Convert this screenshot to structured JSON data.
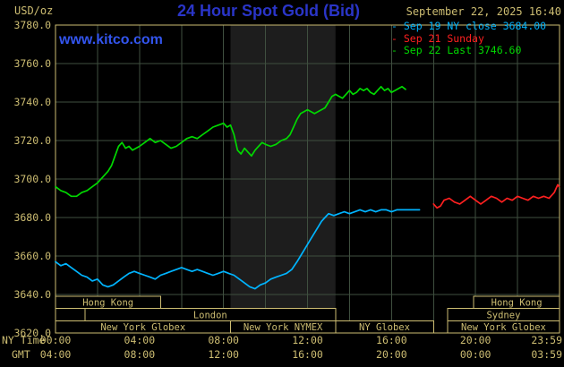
{
  "header": {
    "units_label": "USD/oz",
    "title": "24 Hour Spot Gold (Bid)",
    "datetime": "September 22, 2025 16:40",
    "watermark": "www.kitco.com"
  },
  "legend": {
    "items": [
      {
        "label": "Sep 19 NY close 3684.00",
        "color": "#00b4ff"
      },
      {
        "label": "Sep 21 Sunday",
        "color": "#ff2020"
      },
      {
        "label": "Sep 22 Last 3746.60",
        "color": "#00d800"
      }
    ]
  },
  "axes": {
    "x_primary_label": "NY Time",
    "x_secondary_label": "GMT",
    "x_primary_ticks": [
      "00:00",
      "04:00",
      "08:00",
      "12:00",
      "16:00",
      "20:00",
      "23:59"
    ],
    "x_secondary_ticks": [
      "04:00",
      "08:00",
      "12:00",
      "16:00",
      "20:00",
      "00:00",
      "03:59"
    ],
    "y_ticks": [
      "3780.0",
      "3760.0",
      "3740.0",
      "3720.0",
      "3700.0",
      "3680.0",
      "3660.0",
      "3640.0",
      "3620.0"
    ]
  },
  "colors": {
    "background": "#000000",
    "frame_tan": "#cdbd72",
    "title_blue": "#2a35c8",
    "kitco_blue": "#3355ee",
    "grid": "#3f4f3f",
    "session_band": "#1d1d1d",
    "session_box_fill": "#000000"
  },
  "chart_data": {
    "type": "line",
    "title": "24 Hour Spot Gold (Bid)",
    "ylabel": "USD/oz",
    "ylim": [
      3620,
      3780
    ],
    "y_tick_step": 20,
    "xlim": [
      0,
      1440
    ],
    "x_unit": "minutes since 00:00 NY time",
    "x_ticks_minutes": [
      0,
      240,
      480,
      720,
      960,
      1200,
      1439
    ],
    "grid": true,
    "legend_position": "top-right",
    "session_band": {
      "label": "New York NYMEX",
      "start_min": 500,
      "end_min": 800
    },
    "market_sessions": [
      {
        "row": 0,
        "label": "Hong Kong",
        "start_min": 0,
        "end_min": 300
      },
      {
        "row": 0,
        "label": "Hong Kong",
        "start_min": 1195,
        "end_min": 1440
      },
      {
        "row": 1,
        "label": "London",
        "start_min": 84,
        "end_min": 800
      },
      {
        "row": 1,
        "label": "Sydney",
        "start_min": 1120,
        "end_min": 1440
      },
      {
        "row": 2,
        "label": "New York Globex",
        "start_min": 0,
        "end_min": 500
      },
      {
        "row": 2,
        "label": "New York NYMEX",
        "start_min": 500,
        "end_min": 800
      },
      {
        "row": 2,
        "label": "NY Globex",
        "start_min": 800,
        "end_min": 1080
      },
      {
        "row": 2,
        "label": "New York Globex",
        "start_min": 1120,
        "end_min": 1440
      }
    ],
    "series": [
      {
        "name": "Sep 19 NY close",
        "color": "#00b4ff",
        "last_value": 3684.0,
        "points": [
          [
            0,
            3657
          ],
          [
            15,
            3655
          ],
          [
            30,
            3656
          ],
          [
            45,
            3654
          ],
          [
            60,
            3652
          ],
          [
            75,
            3650
          ],
          [
            90,
            3649
          ],
          [
            105,
            3647
          ],
          [
            120,
            3648
          ],
          [
            135,
            3645
          ],
          [
            150,
            3644
          ],
          [
            165,
            3645
          ],
          [
            180,
            3647
          ],
          [
            195,
            3649
          ],
          [
            210,
            3651
          ],
          [
            225,
            3652
          ],
          [
            240,
            3651
          ],
          [
            255,
            3650
          ],
          [
            270,
            3649
          ],
          [
            285,
            3648
          ],
          [
            300,
            3650
          ],
          [
            315,
            3651
          ],
          [
            330,
            3652
          ],
          [
            345,
            3653
          ],
          [
            360,
            3654
          ],
          [
            375,
            3653
          ],
          [
            390,
            3652
          ],
          [
            405,
            3653
          ],
          [
            420,
            3652
          ],
          [
            435,
            3651
          ],
          [
            450,
            3650
          ],
          [
            465,
            3651
          ],
          [
            480,
            3652
          ],
          [
            495,
            3651
          ],
          [
            510,
            3650
          ],
          [
            525,
            3648
          ],
          [
            540,
            3646
          ],
          [
            555,
            3644
          ],
          [
            570,
            3643
          ],
          [
            585,
            3645
          ],
          [
            600,
            3646
          ],
          [
            615,
            3648
          ],
          [
            630,
            3649
          ],
          [
            645,
            3650
          ],
          [
            660,
            3651
          ],
          [
            675,
            3653
          ],
          [
            690,
            3657
          ],
          [
            700,
            3660
          ],
          [
            710,
            3663
          ],
          [
            720,
            3666
          ],
          [
            730,
            3669
          ],
          [
            740,
            3672
          ],
          [
            750,
            3675
          ],
          [
            760,
            3678
          ],
          [
            770,
            3680
          ],
          [
            780,
            3682
          ],
          [
            795,
            3681
          ],
          [
            810,
            3682
          ],
          [
            825,
            3683
          ],
          [
            840,
            3682
          ],
          [
            855,
            3683
          ],
          [
            870,
            3684
          ],
          [
            885,
            3683
          ],
          [
            900,
            3684
          ],
          [
            915,
            3683
          ],
          [
            930,
            3684
          ],
          [
            945,
            3684
          ],
          [
            960,
            3683
          ],
          [
            975,
            3684
          ],
          [
            990,
            3684
          ],
          [
            1005,
            3684
          ],
          [
            1020,
            3684
          ],
          [
            1040,
            3684
          ]
        ]
      },
      {
        "name": "Sep 21 Sunday",
        "color": "#ff2020",
        "points": [
          [
            1080,
            3687
          ],
          [
            1090,
            3685
          ],
          [
            1100,
            3686
          ],
          [
            1110,
            3689
          ],
          [
            1125,
            3690
          ],
          [
            1140,
            3688
          ],
          [
            1155,
            3687
          ],
          [
            1170,
            3689
          ],
          [
            1185,
            3691
          ],
          [
            1200,
            3689
          ],
          [
            1215,
            3687
          ],
          [
            1230,
            3689
          ],
          [
            1245,
            3691
          ],
          [
            1260,
            3690
          ],
          [
            1275,
            3688
          ],
          [
            1290,
            3690
          ],
          [
            1305,
            3689
          ],
          [
            1320,
            3691
          ],
          [
            1335,
            3690
          ],
          [
            1350,
            3689
          ],
          [
            1365,
            3691
          ],
          [
            1380,
            3690
          ],
          [
            1395,
            3691
          ],
          [
            1410,
            3690
          ],
          [
            1425,
            3693
          ],
          [
            1435,
            3697
          ],
          [
            1439,
            3696
          ]
        ]
      },
      {
        "name": "Sep 22",
        "color": "#00d800",
        "last_value": 3746.6,
        "points": [
          [
            0,
            3696
          ],
          [
            15,
            3694
          ],
          [
            30,
            3693
          ],
          [
            45,
            3691
          ],
          [
            60,
            3691
          ],
          [
            75,
            3693
          ],
          [
            90,
            3694
          ],
          [
            105,
            3696
          ],
          [
            120,
            3698
          ],
          [
            135,
            3701
          ],
          [
            150,
            3704
          ],
          [
            160,
            3707
          ],
          [
            170,
            3712
          ],
          [
            180,
            3717
          ],
          [
            190,
            3719
          ],
          [
            200,
            3716
          ],
          [
            210,
            3717
          ],
          [
            220,
            3715
          ],
          [
            230,
            3716
          ],
          [
            240,
            3717
          ],
          [
            255,
            3719
          ],
          [
            270,
            3721
          ],
          [
            285,
            3719
          ],
          [
            300,
            3720
          ],
          [
            315,
            3718
          ],
          [
            330,
            3716
          ],
          [
            345,
            3717
          ],
          [
            360,
            3719
          ],
          [
            375,
            3721
          ],
          [
            390,
            3722
          ],
          [
            405,
            3721
          ],
          [
            420,
            3723
          ],
          [
            435,
            3725
          ],
          [
            450,
            3727
          ],
          [
            465,
            3728
          ],
          [
            480,
            3729
          ],
          [
            490,
            3727
          ],
          [
            500,
            3728
          ],
          [
            510,
            3723
          ],
          [
            520,
            3715
          ],
          [
            530,
            3713
          ],
          [
            540,
            3716
          ],
          [
            550,
            3714
          ],
          [
            560,
            3712
          ],
          [
            570,
            3715
          ],
          [
            580,
            3717
          ],
          [
            590,
            3719
          ],
          [
            600,
            3718
          ],
          [
            615,
            3717
          ],
          [
            630,
            3718
          ],
          [
            645,
            3720
          ],
          [
            660,
            3721
          ],
          [
            670,
            3723
          ],
          [
            680,
            3727
          ],
          [
            690,
            3731
          ],
          [
            700,
            3734
          ],
          [
            710,
            3735
          ],
          [
            720,
            3736
          ],
          [
            730,
            3735
          ],
          [
            740,
            3734
          ],
          [
            750,
            3735
          ],
          [
            760,
            3736
          ],
          [
            770,
            3737
          ],
          [
            780,
            3740
          ],
          [
            790,
            3743
          ],
          [
            800,
            3744
          ],
          [
            810,
            3743
          ],
          [
            820,
            3742
          ],
          [
            830,
            3744
          ],
          [
            840,
            3746
          ],
          [
            850,
            3744
          ],
          [
            860,
            3745
          ],
          [
            870,
            3747
          ],
          [
            880,
            3746
          ],
          [
            890,
            3747
          ],
          [
            900,
            3745
          ],
          [
            910,
            3744
          ],
          [
            920,
            3746
          ],
          [
            930,
            3748
          ],
          [
            940,
            3746
          ],
          [
            950,
            3747
          ],
          [
            960,
            3745
          ],
          [
            970,
            3746
          ],
          [
            980,
            3747
          ],
          [
            990,
            3748
          ],
          [
            1000,
            3746.6
          ]
        ]
      }
    ]
  }
}
